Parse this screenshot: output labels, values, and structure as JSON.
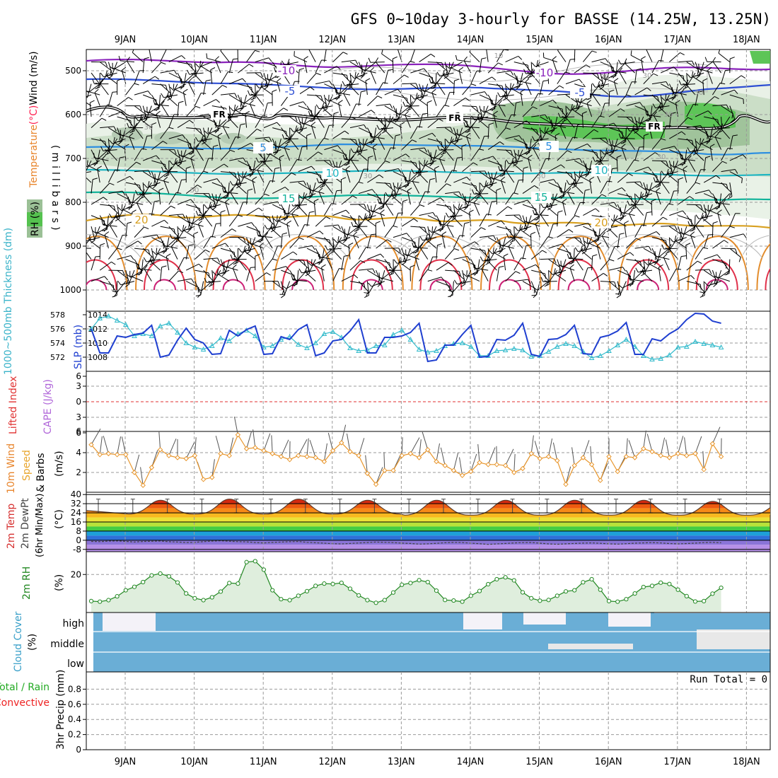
{
  "chart_data": {
    "type": "multi-panel meteogram",
    "title": "GFS 0~10day 3-hourly for BASSE (14.25W, 13.25N)",
    "days": [
      "9JAN",
      "10JAN",
      "11JAN",
      "12JAN",
      "13JAN",
      "14JAN",
      "15JAN",
      "16JAN",
      "17JAN",
      "18JAN"
    ],
    "panels": {
      "upper_air": {
        "ylabel_parts": [
          {
            "text": "Wind (m/s)",
            "color": "#000000"
          },
          {
            "text": "(°C)",
            "color": "#ff2050"
          },
          {
            "text": "Temperature",
            "color": "#e8852c"
          }
        ],
        "rh_label": "RH (%)",
        "pressure_label": "(millibars)",
        "pressure_ticks": [
          500,
          600,
          700,
          800,
          900,
          1000
        ],
        "temperature_labels": [
          "-10",
          "-10",
          "-5",
          "-5",
          "5",
          "5",
          "10",
          "10",
          "15",
          "15",
          "20",
          "20"
        ],
        "rh_labels": [
          "10",
          "30",
          "30",
          "30",
          "30",
          "10",
          "30",
          "30",
          "50",
          "30",
          "30"
        ],
        "freezing_labels": [
          "FR",
          "FR",
          "FR"
        ]
      },
      "thickness_slp": {
        "ylabel_thickness": "1000~500mb Thickness (dm)",
        "ylabel_slp": "SLP (mb)",
        "thickness_ticks": [
          572,
          574,
          576,
          578
        ],
        "slp_ticks": [
          1008,
          1010,
          1012,
          1014
        ],
        "slp": [
          1012,
          1008.6,
          1008.6,
          1011,
          1010.8,
          1011.2,
          1011.4,
          1012.5,
          1008,
          1008.3,
          1010.4,
          1012.1,
          1010.5,
          1010,
          1008.4,
          1008.5,
          1011.8,
          1011,
          1011.9,
          1012.4,
          1008.4,
          1008.5,
          1010.9,
          1010.5,
          1011.9,
          1012.6,
          1008.2,
          1008.6,
          1010.3,
          1010.5,
          1011.7,
          1013.3,
          1008.6,
          1008.6,
          1010.8,
          1010.8,
          1011,
          1011.5,
          1012.8,
          1007.4,
          1007.6,
          1009.7,
          1009.7,
          1011.2,
          1012.5,
          1008,
          1008.1,
          1010.5,
          1010.4,
          1011.1,
          1012.8,
          1008.4,
          1008.1,
          1010.5,
          1010.6,
          1011.2,
          1012.5,
          1008.5,
          1008.4,
          1010.8,
          1011.1,
          1011.7,
          1012.9,
          1008.4,
          1008.4,
          1010.6,
          1010.3,
          1011.3,
          1012,
          1013.3,
          1014.2,
          1014.1,
          1013.1,
          1012.8
        ],
        "thickness": [
          576,
          577.5,
          577.8,
          577.2,
          576.6,
          575,
          575.3,
          575,
          576.4,
          576.8,
          575.5,
          574,
          573.4,
          573.1,
          573.6,
          574.7,
          574.3,
          575.3,
          575.8,
          575,
          573.4,
          573.6,
          574.5,
          574.9,
          573.8,
          573.3,
          574,
          575.3,
          575.6,
          574.8,
          573.3,
          572.9,
          573,
          573.6,
          573.7,
          575.2,
          575.8,
          574.5,
          573.1,
          572.7,
          572.9,
          573.6,
          573.9,
          574,
          573.5,
          572.2,
          572.2,
          572.9,
          573,
          573.2,
          573,
          572.1,
          572.2,
          572.8,
          573.5,
          573.9,
          573.6,
          572.8,
          571.9,
          572.2,
          572.9,
          573.7,
          574.5,
          573.5,
          572.2,
          571.7,
          571.8,
          572.3,
          573.4,
          573.5,
          574.2,
          573.9,
          573.7,
          573.4
        ]
      },
      "stability": {
        "ylabel_li": "Lifted Index",
        "ylabel_cape": "CAPE (J/kg)",
        "ticks": [
          "6",
          "3",
          "0",
          "3",
          "6"
        ]
      },
      "wind10m": {
        "ylabel_lines": [
          "10m Wind",
          "Speed",
          "& Barbs"
        ],
        "ylabel_unit": "(m/s)",
        "ticks": [
          2,
          4,
          6
        ],
        "speed": [
          4.8,
          3.8,
          3.9,
          3.8,
          3.8,
          2,
          0.7,
          2.5,
          4.3,
          3.7,
          3.5,
          3.4,
          3.7,
          1.3,
          1.5,
          3.9,
          3.7,
          5.8,
          4.4,
          4.5,
          4.2,
          3.9,
          3.6,
          3.3,
          3.7,
          3.6,
          3.5,
          3.1,
          4.2,
          5,
          4.1,
          3.7,
          1.9,
          0.8,
          2.2,
          2.2,
          3.7,
          3.9,
          3.5,
          4.3,
          3.1,
          2.7,
          2.2,
          1.7,
          2.1,
          3,
          2.8,
          2.8,
          2.7,
          2,
          2.4,
          3.9,
          3.4,
          3.6,
          3.2,
          0.8,
          2.7,
          3.5,
          2.8,
          1.2,
          3.6,
          2.1,
          3.6,
          3.5,
          4.4,
          4.1,
          3.7,
          3.5,
          3.9,
          3.7,
          3.9,
          2.3,
          4.9,
          3.6
        ]
      },
      "temp2m": {
        "ylabel_lines": [
          "2m Temp",
          "2m DewPt",
          "(6hr Min/Max)"
        ],
        "ylabel_unit": "(°C)",
        "ticks": [
          "40",
          "32",
          "24",
          "16",
          "8",
          "0",
          "-8"
        ],
        "temp_daily_max": [
          35,
          36,
          36,
          35,
          35,
          35,
          35,
          35,
          34,
          33
        ],
        "temp_daily_min": [
          23,
          23,
          23,
          23,
          22,
          22,
          22,
          22,
          22,
          22
        ],
        "dewpoint": [
          -1,
          -1.2,
          -0.8,
          -0.6,
          -1,
          -1.5,
          -1.1,
          -0.9,
          -0.7,
          -1.3,
          -1.5,
          -2,
          -1.8,
          -1.2,
          -0.8,
          -0.5,
          -0.9,
          -1.2,
          -1.4,
          -2,
          -2.4,
          -1.9,
          -1.6,
          -1.3,
          -1.1,
          -1.8,
          -2.2,
          -2.6,
          -3,
          -3.2,
          -2.8,
          -2.4,
          -2,
          -1.6,
          -1.8,
          -2.1,
          -2.5,
          -2.8,
          -3.4,
          -3.1,
          -2.7,
          -2.2,
          -1.9,
          -2,
          -2.6,
          -3,
          -3.6,
          -3.2,
          -2.8,
          -2.4,
          -2.1,
          -2,
          -2.6,
          -3.2,
          -3.5,
          -3.1,
          -2.8,
          -2.5,
          -2.3,
          -2.7,
          -3.1,
          -3.4,
          -3,
          -2.6,
          -2.3,
          -2.1,
          -2.4,
          -2.9,
          -3.2,
          -2.9,
          -2.5,
          -2.1,
          -1.8,
          -2.2
        ]
      },
      "rh2m": {
        "ylabel": "2m RH",
        "ylabel_unit": "(%)",
        "ticks": [
          20
        ],
        "rh": [
          6,
          5.7,
          6.5,
          8.5,
          11.7,
          13.5,
          16,
          19.5,
          20.5,
          19,
          15.8,
          10,
          7.5,
          6.5,
          8,
          11,
          15.5,
          15.2,
          26.5,
          27,
          22.5,
          11.7,
          7,
          6.5,
          8.8,
          11.2,
          14,
          15.2,
          15,
          15.6,
          12.5,
          9,
          6.5,
          5.1,
          6.5,
          10.5,
          14.6,
          15.5,
          17,
          16,
          11.5,
          6.6,
          6.3,
          5.7,
          8.8,
          11.3,
          14.9,
          17.5,
          18.5,
          16.9,
          10.6,
          7.5,
          6.2,
          6.6,
          8.8,
          11.1,
          11.7,
          15.9,
          17.5,
          12,
          6,
          5.7,
          7,
          10,
          13.4,
          14,
          15.7,
          15,
          12,
          8.6,
          5.8,
          6,
          9.9,
          13
        ]
      },
      "cloud": {
        "ylabel": "Cloud Cover",
        "ylabel_unit": "(%)",
        "levels": [
          "high",
          "middle",
          "low"
        ]
      },
      "precip": {
        "ylabel_parts": [
          {
            "text": "Total / Rain",
            "color": "#22aa22"
          },
          {
            "text": "Convective",
            "color": "#ee2222"
          }
        ],
        "ylabel_unit": "3hr Precip (mm)",
        "ticks": [
          "0",
          "0.2",
          "0.4",
          "0.6",
          "0.8"
        ],
        "run_total_label": "Run Total = 0",
        "values": []
      }
    }
  },
  "colors": {
    "slp": "#1f3fd0",
    "thickness": "#33bbcc",
    "wind10m": "#e8962c",
    "rh2m": "#228822",
    "rh2m_fill": "#dfeedd",
    "cloud": "#6aaed6",
    "cloud_gap": "#f4f2f8",
    "cape_zero": "#e03030"
  }
}
